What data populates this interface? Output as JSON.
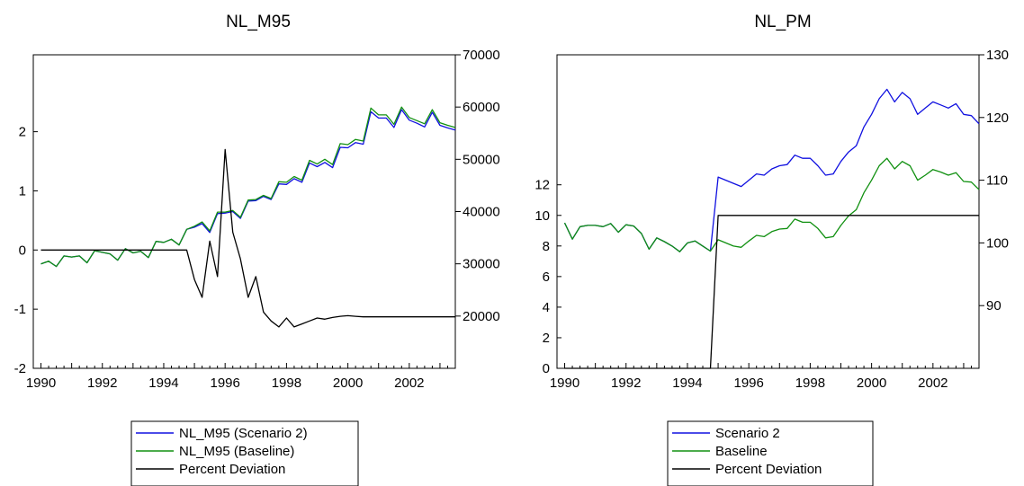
{
  "chart_data": [
    {
      "type": "line",
      "title": "NL_M95",
      "x": [
        1990.0,
        1990.25,
        1990.5,
        1990.75,
        1991.0,
        1991.25,
        1991.5,
        1991.75,
        1992.0,
        1992.25,
        1992.5,
        1992.75,
        1993.0,
        1993.25,
        1993.5,
        1993.75,
        1994.0,
        1994.25,
        1994.5,
        1994.75,
        1995.0,
        1995.25,
        1995.5,
        1995.75,
        1996.0,
        1996.25,
        1996.5,
        1996.75,
        1997.0,
        1997.25,
        1997.5,
        1997.75,
        1998.0,
        1998.25,
        1998.5,
        1998.75,
        1999.0,
        1999.25,
        1999.5,
        1999.75,
        2000.0,
        2000.25,
        2000.5,
        2000.75,
        2001.0,
        2001.25,
        2001.5,
        2001.75,
        2002.0,
        2002.25,
        2002.5,
        2002.75,
        2003.0,
        2003.25,
        2003.5
      ],
      "xlim": [
        1989.75,
        2003.5
      ],
      "xticks": [
        1990,
        1992,
        1994,
        1996,
        1998,
        2000,
        2002
      ],
      "left_axis": {
        "ylim": [
          -2,
          3.3
        ],
        "ticks": [
          -2,
          -1,
          0,
          1,
          2
        ]
      },
      "right_axis": {
        "ylim": [
          10000,
          70000
        ],
        "ticks": [
          20000,
          30000,
          40000,
          50000,
          60000,
          70000
        ]
      },
      "series": [
        {
          "name": "NL_M95 (Scenario 2)",
          "axis": "right",
          "color": "#1010e0",
          "values": [
            30000,
            30500,
            29500,
            31500,
            31300,
            31500,
            30200,
            32500,
            32200,
            31900,
            30700,
            32900,
            32100,
            32400,
            31200,
            34300,
            34100,
            34700,
            33600,
            36600,
            37000,
            37700,
            36000,
            39600,
            39700,
            40000,
            38700,
            42000,
            42100,
            42900,
            42300,
            45300,
            45200,
            46300,
            45600,
            49300,
            48600,
            49400,
            48400,
            52300,
            52200,
            53200,
            52900,
            59100,
            57900,
            57900,
            56100,
            59500,
            57500,
            56900,
            56200,
            59000,
            56500,
            56000,
            55600
          ]
        },
        {
          "name": "NL_M95 (Baseline)",
          "axis": "right",
          "color": "#109010",
          "values": [
            30000,
            30500,
            29500,
            31500,
            31300,
            31500,
            30200,
            32500,
            32200,
            31900,
            30700,
            32900,
            32100,
            32400,
            31200,
            34300,
            34100,
            34700,
            33600,
            36600,
            37200,
            38000,
            36300,
            39900,
            39900,
            40200,
            38900,
            42200,
            42300,
            43100,
            42500,
            45700,
            45600,
            46700,
            46000,
            49800,
            49100,
            50000,
            49000,
            53000,
            52800,
            53800,
            53500,
            59800,
            58500,
            58500,
            56700,
            60000,
            58000,
            57400,
            56800,
            59500,
            57000,
            56500,
            56100
          ]
        },
        {
          "name": "Percent Deviation",
          "axis": "left",
          "color": "#000000",
          "values": [
            0,
            0,
            0,
            0,
            0,
            0,
            0,
            0,
            0,
            0,
            0,
            0,
            0,
            0,
            0,
            0,
            0,
            0,
            0,
            0,
            -0.5,
            -0.8,
            0.15,
            -0.45,
            1.7,
            0.3,
            -0.15,
            -0.8,
            -0.45,
            -1.05,
            -1.2,
            -1.3,
            -1.15,
            -1.3,
            -1.25,
            -1.2,
            -1.15,
            -1.17,
            -1.14,
            -1.12,
            -1.11,
            -1.12,
            -1.13,
            -1.13,
            -1.13,
            -1.13,
            -1.13,
            -1.13,
            -1.13,
            -1.13,
            -1.13,
            -1.13,
            -1.13,
            -1.13,
            -1.13
          ]
        }
      ],
      "legend_placement": "bottom"
    },
    {
      "type": "line",
      "title": "NL_PM",
      "x": [
        1990.0,
        1990.25,
        1990.5,
        1990.75,
        1991.0,
        1991.25,
        1991.5,
        1991.75,
        1992.0,
        1992.25,
        1992.5,
        1992.75,
        1993.0,
        1993.25,
        1993.5,
        1993.75,
        1994.0,
        1994.25,
        1994.5,
        1994.75,
        1995.0,
        1995.25,
        1995.5,
        1995.75,
        1996.0,
        1996.25,
        1996.5,
        1996.75,
        1997.0,
        1997.25,
        1997.5,
        1997.75,
        1998.0,
        1998.25,
        1998.5,
        1998.75,
        1999.0,
        1999.25,
        1999.5,
        1999.75,
        2000.0,
        2000.25,
        2000.5,
        2000.75,
        2001.0,
        2001.25,
        2001.5,
        2001.75,
        2002.0,
        2002.25,
        2002.5,
        2002.75,
        2003.0,
        2003.25,
        2003.5
      ],
      "xlim": [
        1989.75,
        2003.5
      ],
      "xticks": [
        1990,
        1992,
        1994,
        1996,
        1998,
        2000,
        2002
      ],
      "left_axis": {
        "ylim": [
          0,
          20.5
        ],
        "ticks": [
          0,
          2,
          4,
          6,
          8,
          10,
          12
        ]
      },
      "right_axis": {
        "ylim": [
          80,
          130
        ],
        "ticks": [
          90,
          100,
          110,
          120,
          130
        ]
      },
      "series": [
        {
          "name": "Scenario 2",
          "axis": "right",
          "color": "#1010e0",
          "values": [
            103.2,
            100.6,
            102.6,
            102.8,
            102.8,
            102.6,
            103.1,
            101.7,
            102.9,
            102.7,
            101.5,
            99.0,
            100.8,
            100.2,
            99.5,
            98.6,
            100.0,
            100.3,
            99.5,
            98.7,
            110.5,
            110.0,
            109.5,
            109.0,
            110.0,
            111.0,
            110.8,
            111.8,
            112.3,
            112.5,
            114.0,
            113.5,
            113.5,
            112.3,
            110.8,
            111.0,
            113.0,
            114.5,
            115.5,
            118.5,
            120.5,
            123.0,
            124.5,
            122.5,
            124.0,
            123.0,
            120.5,
            121.5,
            122.5,
            122.0,
            121.5,
            122.2,
            120.5,
            120.3,
            119.0
          ]
        },
        {
          "name": "Baseline",
          "axis": "right",
          "color": "#109010",
          "values": [
            103.2,
            100.6,
            102.6,
            102.8,
            102.8,
            102.6,
            103.1,
            101.7,
            102.9,
            102.7,
            101.5,
            99.0,
            100.8,
            100.2,
            99.5,
            98.6,
            100.0,
            100.3,
            99.5,
            98.7,
            100.5,
            100.0,
            99.5,
            99.3,
            100.3,
            101.2,
            101.0,
            101.8,
            102.2,
            102.3,
            103.8,
            103.3,
            103.3,
            102.3,
            100.8,
            101.0,
            102.8,
            104.3,
            105.3,
            108.0,
            110.0,
            112.3,
            113.5,
            111.8,
            113.0,
            112.3,
            110.0,
            110.8,
            111.7,
            111.3,
            110.8,
            111.2,
            109.8,
            109.7,
            108.5
          ]
        },
        {
          "name": "Percent Deviation",
          "axis": "left",
          "color": "#000000",
          "values": [
            0,
            0,
            0,
            0,
            0,
            0,
            0,
            0,
            0,
            0,
            0,
            0,
            0,
            0,
            0,
            0,
            0,
            0,
            0,
            0,
            10,
            10,
            10,
            10,
            10,
            10,
            10,
            10,
            10,
            10,
            10,
            10,
            10,
            10,
            10,
            10,
            10,
            10,
            10,
            10,
            10,
            10,
            10,
            10,
            10,
            10,
            10,
            10,
            10,
            10,
            10,
            10,
            10,
            10,
            10
          ]
        }
      ],
      "legend_placement": "bottom"
    }
  ]
}
